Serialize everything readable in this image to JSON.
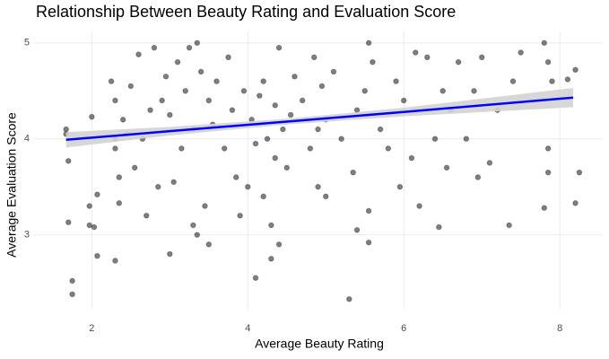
{
  "chart_data": {
    "type": "scatter",
    "title": "Relationship Between Beauty Rating and Evaluation Score",
    "x_label": "Average Beauty Rating",
    "y_label": "Average Evaluation Score",
    "xlim": [
      1.26,
      8.55
    ],
    "ylim": [
      2.22,
      5.12
    ],
    "xticks": [
      2,
      4,
      6,
      8
    ],
    "yticks": [
      3,
      4,
      5
    ],
    "grid": true,
    "point_color": "#000000",
    "x": [
      1.67,
      1.67,
      1.7,
      1.7,
      1.75,
      1.75,
      1.97,
      1.97,
      2.0,
      2.03,
      2.07,
      2.07,
      2.3,
      2.25,
      2.3,
      2.3,
      2.3,
      2.35,
      2.35,
      2.4,
      2.45,
      2.5,
      2.55,
      2.6,
      2.65,
      2.7,
      2.75,
      2.8,
      2.85,
      2.9,
      2.95,
      3.0,
      3.0,
      3.05,
      3.1,
      3.15,
      3.2,
      3.25,
      3.3,
      3.3,
      3.35,
      3.35,
      3.4,
      3.45,
      3.5,
      3.5,
      3.55,
      3.6,
      3.7,
      3.75,
      3.8,
      3.85,
      3.9,
      3.95,
      4.0,
      4.05,
      4.1,
      4.1,
      4.15,
      4.2,
      4.2,
      4.25,
      4.3,
      4.3,
      4.35,
      4.35,
      4.4,
      4.4,
      4.45,
      4.5,
      4.55,
      4.6,
      4.7,
      4.8,
      4.85,
      4.9,
      4.9,
      4.95,
      5.0,
      5.0,
      5.1,
      5.2,
      5.3,
      5.35,
      5.4,
      5.4,
      5.5,
      5.55,
      5.55,
      5.55,
      5.6,
      5.7,
      5.8,
      5.9,
      5.95,
      6.0,
      6.1,
      6.15,
      6.2,
      6.3,
      6.4,
      6.45,
      6.5,
      6.55,
      6.6,
      6.7,
      6.8,
      6.9,
      6.95,
      7.0,
      7.1,
      7.2,
      7.35,
      7.4,
      7.5,
      7.8,
      7.8,
      7.85,
      7.85,
      7.85,
      7.9,
      8.2,
      8.2,
      8.25,
      8.1
    ],
    "values": [
      4.1,
      4.05,
      3.77,
      3.13,
      2.52,
      2.38,
      3.3,
      3.1,
      4.23,
      3.08,
      3.42,
      2.78,
      2.73,
      4.6,
      4.4,
      3.9,
      4.0,
      3.6,
      3.33,
      4.2,
      4.05,
      4.55,
      3.7,
      4.88,
      4.0,
      3.2,
      4.3,
      4.95,
      3.5,
      4.4,
      4.65,
      2.8,
      4.25,
      3.55,
      4.8,
      3.9,
      4.5,
      4.95,
      3.1,
      4.1,
      5.0,
      3.0,
      4.7,
      3.3,
      4.4,
      2.9,
      4.15,
      4.6,
      3.9,
      4.85,
      4.3,
      3.6,
      3.2,
      4.5,
      3.5,
      4.2,
      3.95,
      2.55,
      4.45,
      4.6,
      3.4,
      4.0,
      3.1,
      2.75,
      4.35,
      3.8,
      4.95,
      2.9,
      4.1,
      3.7,
      4.25,
      4.65,
      4.4,
      3.9,
      4.85,
      3.5,
      4.1,
      4.55,
      4.2,
      3.4,
      4.7,
      4.0,
      2.33,
      3.65,
      4.3,
      3.05,
      4.5,
      5.0,
      3.25,
      2.92,
      4.8,
      4.1,
      3.9,
      4.6,
      3.5,
      4.4,
      3.8,
      4.9,
      3.3,
      4.85,
      4.0,
      3.08,
      4.5,
      3.7,
      4.3,
      4.8,
      4.0,
      4.5,
      3.6,
      4.85,
      3.75,
      4.3,
      3.1,
      4.6,
      4.9,
      3.28,
      5.0,
      4.8,
      3.9,
      3.65,
      4.6,
      4.72,
      3.33,
      3.65,
      4.62
    ],
    "fit": {
      "color": "#0000ff",
      "band_color": "#d3d3d3",
      "x": [
        1.67,
        3.0,
        4.5,
        6.0,
        8.17
      ],
      "values": [
        3.99,
        4.08,
        4.18,
        4.28,
        4.43
      ],
      "lower": [
        3.91,
        4.035,
        4.15,
        4.235,
        4.33
      ],
      "upper": [
        4.07,
        4.125,
        4.21,
        4.325,
        4.53
      ]
    }
  }
}
